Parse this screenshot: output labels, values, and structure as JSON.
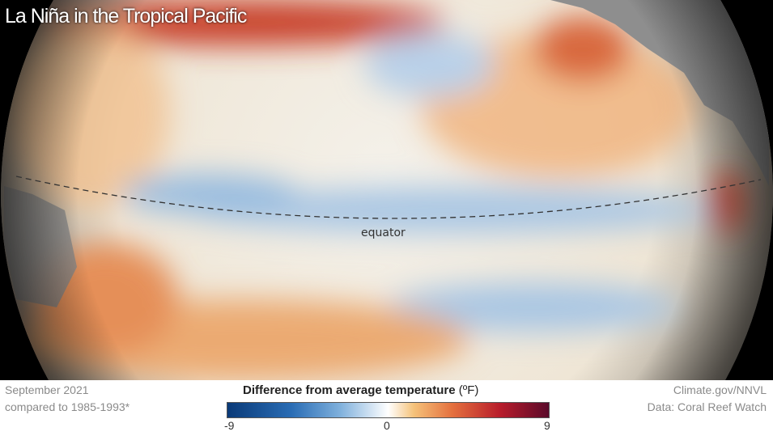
{
  "title": "La Niña in the Tropical Pacific",
  "map_labels": {
    "equator": "equator"
  },
  "footer": {
    "date": "September 2021",
    "baseline": "compared to 1985-1993*",
    "credit": "Climate.gov/NNVL",
    "source": "Data: Coral Reef Watch"
  },
  "legend": {
    "title": "Difference from average temperature",
    "unit": "(ºF)",
    "min_label": "-9",
    "mid_label": "0",
    "max_label": "9",
    "range": [
      -9,
      9
    ],
    "colors": {
      "cold": "#0a3a78",
      "neutral": "#ffffff",
      "warm": "#5a0a2a"
    }
  }
}
